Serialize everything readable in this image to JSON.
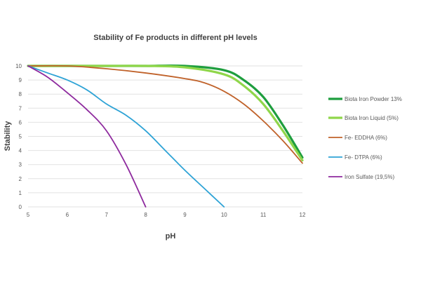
{
  "chart_data": {
    "type": "line",
    "title": "Stability of Fe products in different pH levels",
    "xlabel": "pH",
    "ylabel": "Stability",
    "xlim": [
      5,
      12
    ],
    "ylim": [
      0,
      10
    ],
    "xticks": [
      5,
      6,
      7,
      8,
      9,
      10,
      11,
      12
    ],
    "yticks": [
      0,
      1,
      2,
      3,
      4,
      5,
      6,
      7,
      8,
      9,
      10
    ],
    "grid": "horizontal",
    "legend_position": "right",
    "series": [
      {
        "name": "Biota Iron Powder 13%",
        "color": "#1e9e3e",
        "x": [
          5,
          6,
          7,
          8,
          9,
          10,
          10.5,
          11,
          11.5,
          12
        ],
        "y": [
          10,
          10,
          10,
          10,
          10,
          9.7,
          9.0,
          7.8,
          5.8,
          3.5
        ]
      },
      {
        "name": "Biota Iron Liquid (5%)",
        "color": "#8fd64a",
        "x": [
          5,
          6,
          7,
          8,
          9,
          10,
          10.5,
          11,
          11.5,
          12
        ],
        "y": [
          10,
          10,
          10,
          10,
          9.9,
          9.4,
          8.6,
          7.3,
          5.4,
          3.3
        ]
      },
      {
        "name": "Fe- EDDHA (6%)",
        "color": "#c0622a",
        "x": [
          5,
          6,
          7,
          8,
          9,
          9.5,
          10,
          10.5,
          11,
          11.5,
          12
        ],
        "y": [
          10,
          10,
          9.8,
          9.5,
          9.1,
          8.8,
          8.2,
          7.3,
          6.1,
          4.7,
          3.1
        ]
      },
      {
        "name": "Fe- DTPA (6%)",
        "color": "#2ea3d6",
        "x": [
          5,
          5.5,
          6,
          6.5,
          7,
          7.5,
          8,
          8.5,
          9,
          9.5,
          10
        ],
        "y": [
          10,
          9.5,
          9.0,
          8.3,
          7.3,
          6.5,
          5.4,
          4.0,
          2.6,
          1.3,
          0
        ]
      },
      {
        "name": "Iron Sulfate (19,5%)",
        "color": "#8e2a9e",
        "x": [
          5,
          5.5,
          6,
          6.5,
          7,
          7.5,
          8
        ],
        "y": [
          10,
          9.2,
          8.1,
          6.9,
          5.4,
          3.0,
          0
        ]
      }
    ]
  }
}
